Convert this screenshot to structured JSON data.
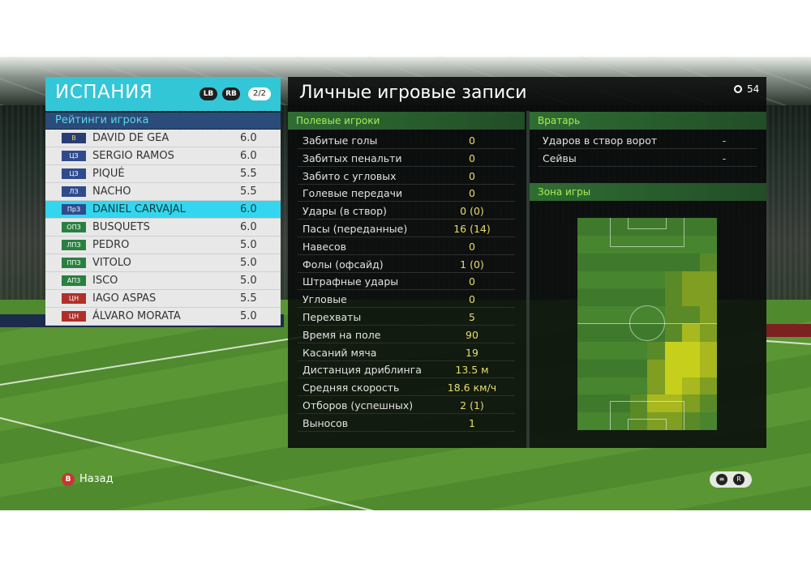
{
  "team": {
    "name": "ИСПАНИЯ",
    "lb_label": "LB",
    "rb_label": "RB",
    "page": "2/2"
  },
  "ratings": {
    "title": "Рейтинги игрока",
    "players": [
      {
        "pos": "В",
        "name": "DAVID DE GEA",
        "rating": "6.0",
        "group": "gk"
      },
      {
        "pos": "ЦЗ",
        "name": "SERGIO RAMOS",
        "rating": "6.0",
        "group": "def"
      },
      {
        "pos": "ЦЗ",
        "name": "PIQUÉ",
        "rating": "5.5",
        "group": "def"
      },
      {
        "pos": "ЛЗ",
        "name": "NACHO",
        "rating": "5.5",
        "group": "def"
      },
      {
        "pos": "ПрЗ",
        "name": "DANIEL CARVAJAL",
        "rating": "6.0",
        "group": "def",
        "selected": true
      },
      {
        "pos": "ОПЗ",
        "name": "BUSQUETS",
        "rating": "6.0",
        "group": "mid"
      },
      {
        "pos": "ЛПЗ",
        "name": "PEDRO",
        "rating": "5.0",
        "group": "mid"
      },
      {
        "pos": "ППЗ",
        "name": "VITOLO",
        "rating": "5.0",
        "group": "mid"
      },
      {
        "pos": "АПЗ",
        "name": "ISCO",
        "rating": "5.0",
        "group": "mid"
      },
      {
        "pos": "ЦН",
        "name": "IAGO ASPAS",
        "rating": "5.5",
        "group": "fwd"
      },
      {
        "pos": "ЦН",
        "name": "ÁLVARO MORATA",
        "rating": "5.0",
        "group": "fwd"
      }
    ]
  },
  "panel": {
    "title": "Личные игровые записи",
    "timer": "54"
  },
  "field_players": {
    "title": "Полевые игроки",
    "stats": [
      {
        "label": "Забитые голы",
        "value": "0"
      },
      {
        "label": "Забитых пенальти",
        "value": "0"
      },
      {
        "label": "Забито с угловых",
        "value": "0"
      },
      {
        "label": "Голевые передачи",
        "value": "0"
      },
      {
        "label": "Удары (в створ)",
        "value": "0 (0)"
      },
      {
        "label": "Пасы (переданные)",
        "value": "16 (14)"
      },
      {
        "label": "Навесов",
        "value": "0"
      },
      {
        "label": "Фолы (офсайд)",
        "value": "1 (0)"
      },
      {
        "label": "Штрафные удары",
        "value": "0"
      },
      {
        "label": "Угловые",
        "value": "0"
      },
      {
        "label": "Перехваты",
        "value": "5"
      },
      {
        "label": "Время на поле",
        "value": "90"
      },
      {
        "label": "Касаний мяча",
        "value": "19"
      },
      {
        "label": "Дистанция дриблинга",
        "value": "13.5 м"
      },
      {
        "label": "Средняя скорость",
        "value": "18.6 км/ч"
      },
      {
        "label": "Отборов (успешных)",
        "value": "2 (1)"
      },
      {
        "label": "Выносов",
        "value": "1"
      }
    ]
  },
  "goalkeeper": {
    "title": "Вратарь",
    "stats": [
      {
        "label": "Ударов в створ ворот",
        "value": "-"
      },
      {
        "label": "Сейвы",
        "value": "-"
      }
    ]
  },
  "zone": {
    "title": "Зона игры",
    "cols": 8,
    "rows": 12,
    "intensity": [
      [
        0,
        0,
        0,
        0,
        0,
        0,
        0,
        0
      ],
      [
        0,
        0,
        0,
        0,
        0,
        0,
        0,
        0
      ],
      [
        0,
        0,
        0,
        0,
        0,
        0,
        0,
        1
      ],
      [
        0,
        0,
        0,
        0,
        0,
        1,
        2,
        2
      ],
      [
        0,
        0,
        0,
        0,
        0,
        1,
        2,
        2
      ],
      [
        0,
        0,
        0,
        0,
        0,
        1,
        1,
        2
      ],
      [
        0,
        0,
        0,
        0,
        0,
        1,
        3,
        2
      ],
      [
        0,
        0,
        0,
        0,
        1,
        4,
        4,
        3
      ],
      [
        0,
        0,
        0,
        0,
        2,
        4,
        4,
        3
      ],
      [
        0,
        0,
        0,
        0,
        2,
        4,
        3,
        2
      ],
      [
        0,
        0,
        0,
        1,
        3,
        3,
        2,
        1
      ],
      [
        0,
        0,
        0,
        1,
        2,
        2,
        1,
        0
      ]
    ]
  },
  "footer": {
    "back_label": "Назад",
    "back_key": "B"
  }
}
